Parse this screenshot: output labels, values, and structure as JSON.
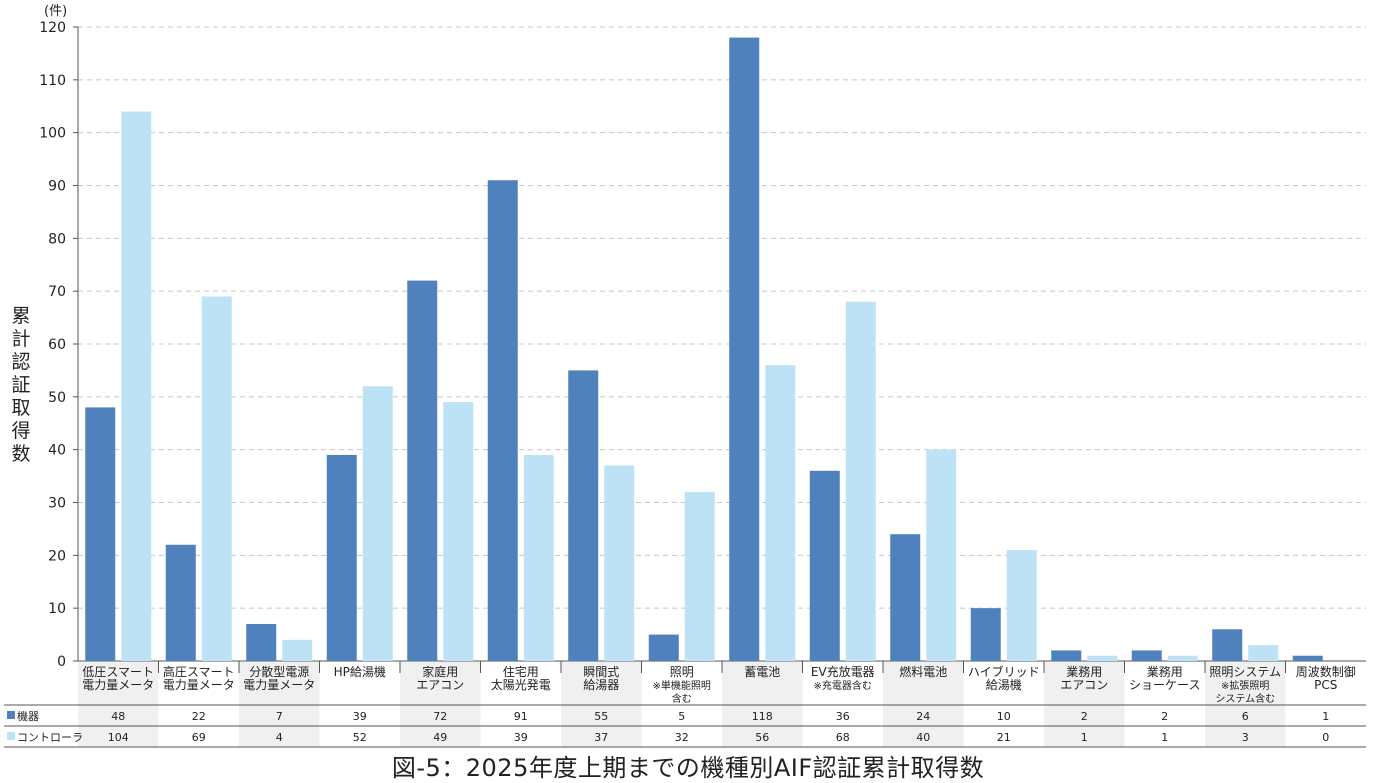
{
  "chart_data": {
    "type": "bar",
    "title": "図-5：2025年度上期までの機種別AIF認証累計取得数",
    "ylabel": "累計認証取得数",
    "yunit": "(件)",
    "ylim": [
      0,
      120
    ],
    "yticks": [
      0,
      10,
      20,
      30,
      40,
      50,
      60,
      70,
      80,
      90,
      100,
      110,
      120
    ],
    "grid": true,
    "categories": [
      [
        "低圧スマート",
        "電力量メータ"
      ],
      [
        "高圧スマート",
        "電力量メータ"
      ],
      [
        "分散型電源",
        "電力量メータ"
      ],
      [
        "HP給湯機"
      ],
      [
        "家庭用",
        "エアコン"
      ],
      [
        "住宅用",
        "太陽光発電"
      ],
      [
        "瞬間式",
        "給湯器"
      ],
      [
        "照明",
        "※単機能照明",
        "含む"
      ],
      [
        "蓄電池"
      ],
      [
        "EV充放電器",
        "※充電器含む"
      ],
      [
        "燃料電池"
      ],
      [
        "ハイブリッド",
        "給湯機"
      ],
      [
        "業務用",
        "エアコン"
      ],
      [
        "業務用",
        "ショーケース"
      ],
      [
        "照明システム",
        "※拡張照明",
        "システム含む"
      ],
      [
        "周波数制御",
        "PCS"
      ]
    ],
    "series": [
      {
        "name": "機器",
        "color": "#4f81bd",
        "values": [
          48,
          22,
          7,
          39,
          72,
          91,
          55,
          5,
          118,
          36,
          24,
          10,
          2,
          2,
          6,
          1
        ]
      },
      {
        "name": "コントローラ",
        "color": "#bde2f5",
        "values": [
          104,
          69,
          4,
          52,
          49,
          39,
          37,
          32,
          56,
          68,
          40,
          21,
          1,
          1,
          3,
          0
        ]
      }
    ],
    "legend": "table-below"
  }
}
